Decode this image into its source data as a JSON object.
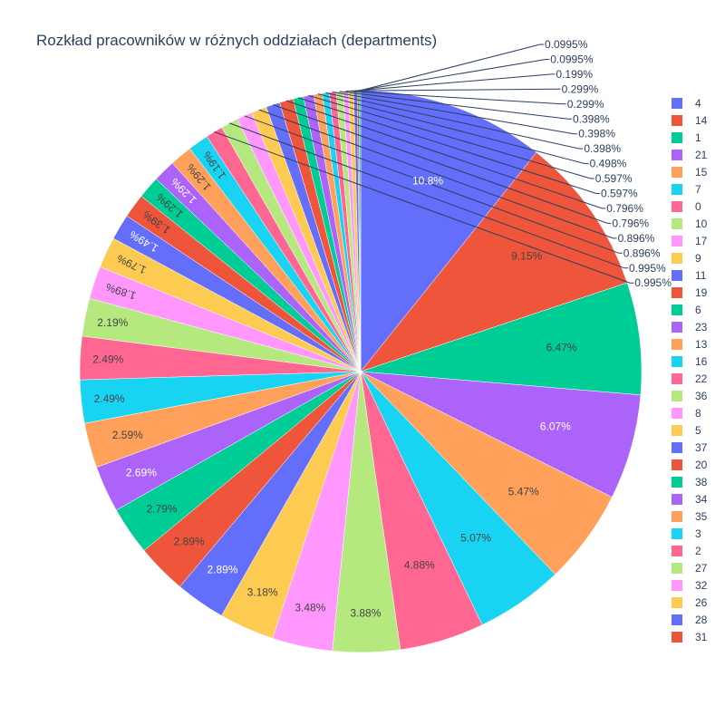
{
  "chart_data": {
    "type": "pie",
    "title": "Rozkład pracowników w różnych oddziałach (departments)",
    "legend_placement": "right",
    "slices": [
      {
        "label": "4",
        "value": 10.8,
        "text": "10.8%",
        "color": "#636efa"
      },
      {
        "label": "14",
        "value": 9.15,
        "text": "9.15%",
        "color": "#EF553B"
      },
      {
        "label": "1",
        "value": 6.47,
        "text": "6.47%",
        "color": "#00cc96"
      },
      {
        "label": "21",
        "value": 6.07,
        "text": "6.07%",
        "color": "#ab63fa"
      },
      {
        "label": "15",
        "value": 5.47,
        "text": "5.47%",
        "color": "#FFA15A"
      },
      {
        "label": "7",
        "value": 5.07,
        "text": "5.07%",
        "color": "#19d3f3"
      },
      {
        "label": "0",
        "value": 4.88,
        "text": "4.88%",
        "color": "#FF6692"
      },
      {
        "label": "10",
        "value": 3.88,
        "text": "3.88%",
        "color": "#B6E880"
      },
      {
        "label": "17",
        "value": 3.48,
        "text": "3.48%",
        "color": "#FF97FF"
      },
      {
        "label": "9",
        "value": 3.18,
        "text": "3.18%",
        "color": "#FECB52"
      },
      {
        "label": "11",
        "value": 2.89,
        "text": "2.89%",
        "color": "#636efa"
      },
      {
        "label": "19",
        "value": 2.89,
        "text": "2.89%",
        "color": "#EF553B"
      },
      {
        "label": "6",
        "value": 2.79,
        "text": "2.79%",
        "color": "#00cc96"
      },
      {
        "label": "23",
        "value": 2.69,
        "text": "2.69%",
        "color": "#ab63fa"
      },
      {
        "label": "13",
        "value": 2.59,
        "text": "2.59%",
        "color": "#FFA15A"
      },
      {
        "label": "16",
        "value": 2.49,
        "text": "2.49%",
        "color": "#19d3f3"
      },
      {
        "label": "22",
        "value": 2.49,
        "text": "2.49%",
        "color": "#FF6692"
      },
      {
        "label": "36",
        "value": 2.19,
        "text": "2.19%",
        "color": "#B6E880"
      },
      {
        "label": "8",
        "value": 1.89,
        "text": "1.89%",
        "color": "#FF97FF"
      },
      {
        "label": "5",
        "value": 1.79,
        "text": "1.79%",
        "color": "#FECB52"
      },
      {
        "label": "37",
        "value": 1.49,
        "text": "1.49%",
        "color": "#636efa"
      },
      {
        "label": "20",
        "value": 1.39,
        "text": "1.39%",
        "color": "#EF553B"
      },
      {
        "label": "38",
        "value": 1.29,
        "text": "1.29%",
        "color": "#00cc96"
      },
      {
        "label": "34",
        "value": 1.29,
        "text": "1.29%",
        "color": "#ab63fa"
      },
      {
        "label": "35",
        "value": 1.29,
        "text": "1.29%",
        "color": "#FFA15A"
      },
      {
        "label": "3",
        "value": 1.19,
        "text": "1.19%",
        "color": "#19d3f3"
      },
      {
        "label": "2",
        "value": 0.995,
        "text": "0.995%",
        "color": "#FF6692"
      },
      {
        "label": "27",
        "value": 0.995,
        "text": "0.995%",
        "color": "#B6E880"
      },
      {
        "label": "32",
        "value": 0.896,
        "text": "0.896%",
        "color": "#FF97FF"
      },
      {
        "label": "26",
        "value": 0.896,
        "text": "0.896%",
        "color": "#FECB52"
      },
      {
        "label": "28",
        "value": 0.796,
        "text": "0.796%",
        "color": "#636efa"
      },
      {
        "label": "31",
        "value": 0.796,
        "text": "0.796%",
        "color": "#EF553B"
      },
      {
        "label": "",
        "value": 0.597,
        "text": "0.597%",
        "color": "#00cc96"
      },
      {
        "label": "",
        "value": 0.597,
        "text": "0.597%",
        "color": "#ab63fa"
      },
      {
        "label": "",
        "value": 0.498,
        "text": "0.498%",
        "color": "#FFA15A"
      },
      {
        "label": "",
        "value": 0.398,
        "text": "0.398%",
        "color": "#19d3f3"
      },
      {
        "label": "",
        "value": 0.398,
        "text": "0.398%",
        "color": "#FF6692"
      },
      {
        "label": "",
        "value": 0.398,
        "text": "0.398%",
        "color": "#B6E880"
      },
      {
        "label": "",
        "value": 0.299,
        "text": "0.299%",
        "color": "#FF97FF"
      },
      {
        "label": "",
        "value": 0.299,
        "text": "0.299%",
        "color": "#FECB52"
      },
      {
        "label": "",
        "value": 0.199,
        "text": "0.199%",
        "color": "#636efa"
      },
      {
        "label": "",
        "value": 0.0995,
        "text": "0.0995%",
        "color": "#EF553B"
      },
      {
        "label": "",
        "value": 0.0995,
        "text": "0.0995%",
        "color": "#00cc96"
      }
    ]
  }
}
